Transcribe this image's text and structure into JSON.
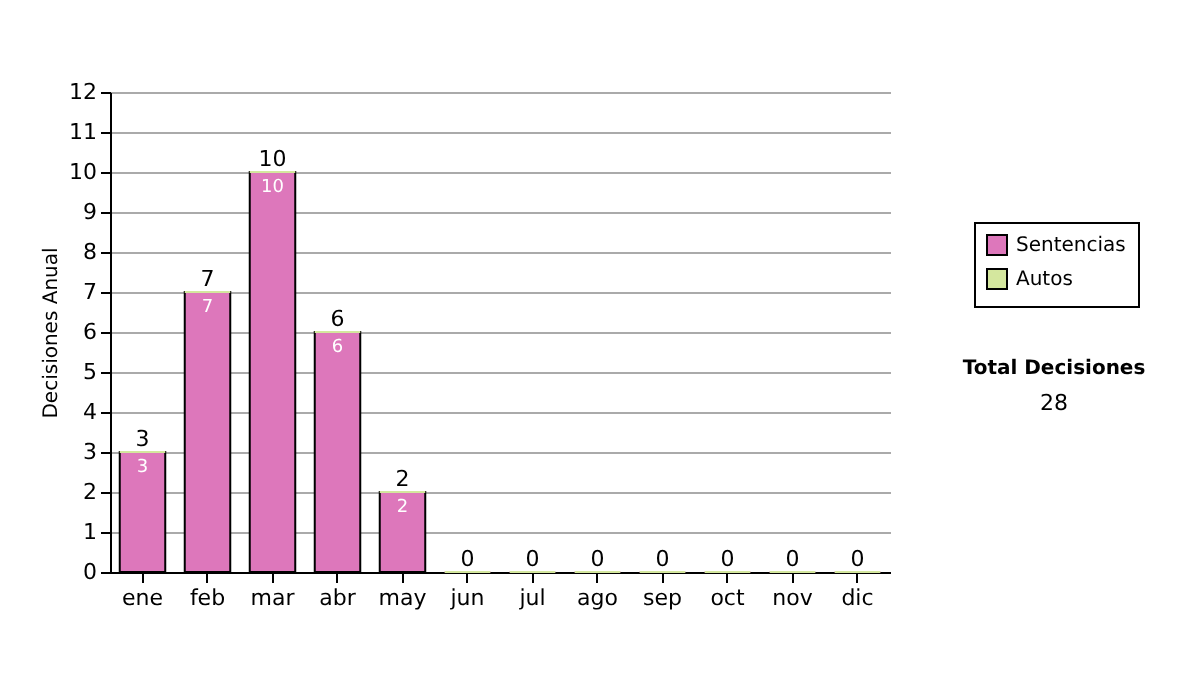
{
  "chart_data": {
    "type": "bar",
    "ylabel": "Decisiones Anual",
    "categories": [
      "ene",
      "feb",
      "mar",
      "abr",
      "may",
      "jun",
      "jul",
      "ago",
      "sep",
      "oct",
      "nov",
      "dic"
    ],
    "series": [
      {
        "name": "Sentencias",
        "color": "#dd77bb",
        "values": [
          3,
          7,
          10,
          6,
          2,
          0,
          0,
          0,
          0,
          0,
          0,
          0
        ],
        "value_labels": [
          "3",
          "7",
          "10",
          "6",
          "2",
          null,
          null,
          null,
          null,
          null,
          null,
          null
        ]
      },
      {
        "name": "Autos",
        "color": "#d4e79e",
        "values": [
          0,
          0,
          0,
          0,
          0,
          0,
          0,
          0,
          0,
          0,
          0,
          0
        ]
      }
    ],
    "stacked": true,
    "totals": [
      "3",
      "7",
      "10",
      "6",
      "2",
      "0",
      "0",
      "0",
      "0",
      "0",
      "0",
      "0"
    ],
    "ylim": [
      0,
      12
    ],
    "yticks": [
      0,
      1,
      2,
      3,
      4,
      5,
      6,
      7,
      8,
      9,
      10,
      11,
      12
    ],
    "grid": "y",
    "legend": "right",
    "annotations": [
      "Total Decisiones",
      "28"
    ]
  }
}
